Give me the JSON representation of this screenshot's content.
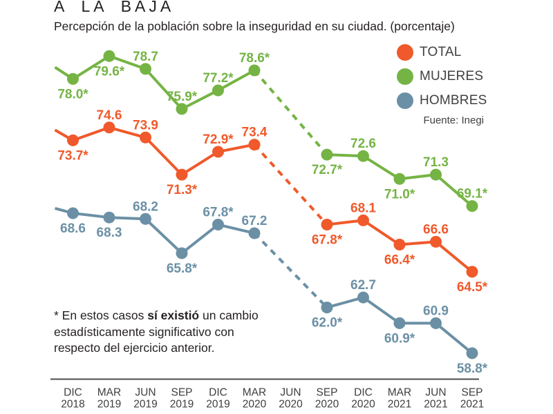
{
  "header": {
    "title": "A LA BAJA",
    "subtitle": "Percepción de la población sobre la inseguridad en su ciudad. (porcentaje)"
  },
  "legend": {
    "items": [
      {
        "label": "TOTAL",
        "color": "#F0592B"
      },
      {
        "label": "MUJERES",
        "color": "#75B444"
      },
      {
        "label": "HOMBRES",
        "color": "#6B90A5"
      }
    ],
    "source": "Fuente: Inegi"
  },
  "footnote": {
    "line1_pre": "* En estos casos ",
    "line1_bold": "sí existió",
    "line1_post": " un cambio",
    "line2": "estadísticamente significativo con",
    "line3": "respecto del ejercicio anterior."
  },
  "chart_data": {
    "type": "line",
    "title": "A LA BAJA",
    "subtitle": "Percepción de la población sobre la inseguridad en su ciudad. (porcentaje)",
    "unit": "percent",
    "categories": [
      "DIC 2018",
      "MAR 2019",
      "JUN 2019",
      "SEP 2019",
      "DIC 2019",
      "MAR 2020",
      "JUN 2020",
      "SEP 2020",
      "DIC 2020",
      "MAR 2021",
      "JUN 2021",
      "SEP 2021"
    ],
    "missing_category": "JUN 2020",
    "dashed_gap_between": [
      "MAR 2020",
      "SEP 2020"
    ],
    "ylim": [
      57,
      82
    ],
    "grid": false,
    "legend_position": "top-right",
    "axis_color": "#4B4B4B",
    "tick_color": "#3E3E3E",
    "series": [
      {
        "name": "TOTAL",
        "color": "#F0592B",
        "values": [
          73.7,
          74.6,
          73.9,
          71.3,
          72.9,
          73.4,
          null,
          67.8,
          68.1,
          66.4,
          66.6,
          64.5
        ],
        "point_labels": [
          "73.7*",
          "74.6",
          "73.9",
          "71.3*",
          "72.9*",
          "73.4",
          "",
          "67.8*",
          "68.1",
          "66.4*",
          "66.6",
          "64.5*"
        ],
        "label_side": [
          "below",
          "above",
          "above",
          "below",
          "above",
          "above",
          "",
          "below",
          "above",
          "below",
          "above",
          "below"
        ]
      },
      {
        "name": "MUJERES",
        "color": "#75B444",
        "values": [
          78.0,
          79.6,
          78.7,
          75.9,
          77.2,
          78.6,
          null,
          72.7,
          72.6,
          71.0,
          71.3,
          69.1
        ],
        "point_labels": [
          "78.0*",
          "79.6*",
          "78.7",
          "75.9*",
          "77.2*",
          "78.6*",
          "",
          "72.7*",
          "72.6",
          "71.0*",
          "71.3",
          "69.1*"
        ],
        "label_side": [
          "below",
          "below",
          "above",
          "above",
          "above",
          "above",
          "",
          "below",
          "above",
          "below",
          "above",
          "above"
        ]
      },
      {
        "name": "HOMBRES",
        "color": "#6B90A5",
        "values": [
          68.6,
          68.3,
          68.2,
          65.8,
          67.8,
          67.2,
          null,
          62.0,
          62.7,
          60.9,
          60.9,
          58.8
        ],
        "point_labels": [
          "68.6",
          "68.3",
          "68.2",
          "65.8*",
          "67.8*",
          "67.2",
          "",
          "62.0*",
          "62.7",
          "60.9*",
          "60.9",
          "58.8*"
        ],
        "label_side": [
          "below",
          "below",
          "above",
          "below",
          "above",
          "above",
          "",
          "below",
          "above",
          "below",
          "above",
          "below"
        ]
      }
    ]
  }
}
